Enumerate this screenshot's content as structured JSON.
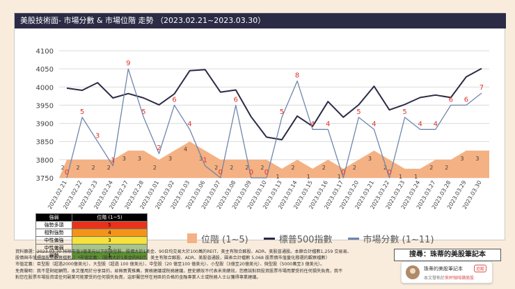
{
  "title": "美股技術面- 市場分數 & 市場位階 走勢 （2023.02.21~2023.03.30）",
  "chart_data": {
    "type": "line",
    "title": "美股技術面- 市場分數 & 市場位階 走勢 （2023.02.21~2023.03.30）",
    "categories": [
      "2023.02.21",
      "2023.02.22",
      "2023.02.23",
      "2023.02.24",
      "2023.02.27",
      "2023.02.28",
      "2023.03.01",
      "2023.03.02",
      "2023.03.03",
      "2023.03.06",
      "2023.03.07",
      "2023.03.08",
      "2023.03.09",
      "2023.03.10",
      "2023.03.13",
      "2023.03.14",
      "2023.03.15",
      "2023.03.16",
      "2023.03.17",
      "2023.03.20",
      "2023.03.21",
      "2023.03.22",
      "2023.03.23",
      "2023.03.24",
      "2023.03.27",
      "2023.03.28",
      "2023.03.29",
      "2023.03.30"
    ],
    "ylim": [
      3750,
      4100
    ],
    "yticks": [
      3750,
      3800,
      3850,
      3900,
      3950,
      4000,
      4050,
      4100
    ],
    "grid": true,
    "legend": "bottom",
    "series": [
      {
        "name": "位階 (1~5)",
        "kind": "area",
        "color": "#f4b183",
        "values": [
          2,
          2,
          2,
          2,
          3,
          3,
          2,
          3,
          4,
          3,
          2,
          2,
          2,
          2,
          1,
          2,
          1,
          2,
          1,
          2,
          3,
          2,
          1,
          1,
          2,
          2,
          3,
          3
        ]
      },
      {
        "name": "標普500指數",
        "kind": "line",
        "color": "#2b2b46",
        "values": [
          3997,
          3991,
          4012,
          3970,
          3982,
          3970,
          3951,
          3981,
          4045,
          4048,
          3986,
          3992,
          3918,
          3862,
          3855,
          3920,
          3892,
          3960,
          3917,
          3951,
          4002,
          3937,
          3952,
          3971,
          3978,
          3971,
          4028,
          4051
        ]
      },
      {
        "name": "市場分數 (1~11)",
        "kind": "line",
        "color": "#6f85ad",
        "values": [
          0,
          5,
          3,
          1,
          9,
          5,
          2,
          6,
          4,
          1,
          0,
          6,
          0,
          0,
          5,
          8,
          4,
          4,
          0,
          5,
          4,
          0,
          5,
          4,
          4,
          6,
          6,
          7
        ]
      }
    ]
  },
  "level_table": {
    "headers": [
      "強弱",
      "位階 (1~5)"
    ],
    "rows": [
      {
        "name": "強勢多頭",
        "level": "5",
        "color": "#e8331c"
      },
      {
        "name": "相對強勢",
        "level": "4",
        "color": "#f39419"
      },
      {
        "name": "中性偏強",
        "level": "3",
        "color": "#f6e23a"
      },
      {
        "name": "中性偏弱",
        "level": "2",
        "color": "#a8c58a"
      },
      {
        "name": "弱勢",
        "level": "1",
        "color": "#5c9130"
      }
    ]
  },
  "legend_labels": {
    "area": "位階 (1~5)",
    "sp500": "標普500指數",
    "score": "市場分數 (1~11)"
  },
  "notes": [
    "資料篩選：2023.03.30 排除市值3億美元以下的微型股、股價大於1美金、90日均交易大於100萬的REIT、美主有限合夥股、ADR、美股普通股。本篩合計檔數1,259 交易易、",
    "股價與市值標圍股票觀察檔數。）*市值定義：（股價大於1美金的REIT、美主有限合夥股、ADR、美股普通股，圓表合計檔數 5,068 股票價市值量化撥選的觀察檔數）",
    "市值定義：巨型股（超過2000億美元）、大型股（超過 100 億美元）、中型股（20 億至100 億美元）、小型股（3億至20億美元）、微型股（5000萬至3 億美元）。",
    "免責聲明：我不是財經顧問，本文僅用於分享目的，並無買賣推薦，實務建議或稅務建議，歷史績效不代表未來績效，您應該對回投資股票市場而蒙受的任何損失負責，我不",
    "對您在股票市場投資或任何副業可能蒙受的任何損失負責，這即屬您所在地區的合格的金融專業人士或稅務人士以獲得專業建議。"
  ],
  "search_label": "搜尋：珠蒂的美股筆記本",
  "profile": {
    "name": "珠蒂的美股筆記本",
    "follow": "追蹤",
    "sub_prefix": "本文發佈於",
    "sub_accent": "來杯咖啡讀美股"
  }
}
